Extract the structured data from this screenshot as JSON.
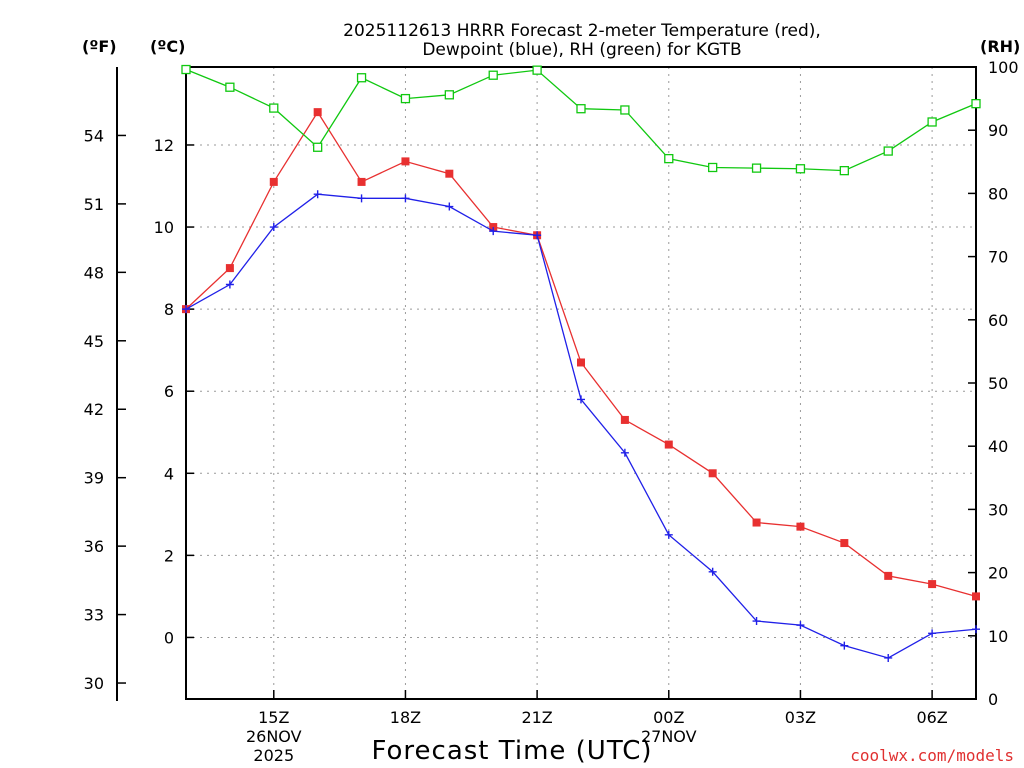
{
  "chart_data": {
    "type": "line",
    "title_line1": "2025112613 HRRR Forecast 2-meter Temperature (red),",
    "title_line2": "Dewpoint (blue), RH (green) for KGTB",
    "xlabel": "Forecast Time (UTC)",
    "credit": "coolwx.com/models",
    "units": {
      "fahrenheit": "(ºF)",
      "celsius": "(ºC)",
      "rh": "(RH)"
    },
    "x_ticks": [
      {
        "hour": 15,
        "label": "15Z",
        "sub1": "26NOV",
        "sub2": "2025"
      },
      {
        "hour": 18,
        "label": "18Z",
        "sub1": "",
        "sub2": ""
      },
      {
        "hour": 21,
        "label": "21Z",
        "sub1": "",
        "sub2": ""
      },
      {
        "hour": 24,
        "label": "00Z",
        "sub1": "27NOV",
        "sub2": ""
      },
      {
        "hour": 27,
        "label": "03Z",
        "sub1": "",
        "sub2": ""
      },
      {
        "hour": 30,
        "label": "06Z",
        "sub1": "",
        "sub2": ""
      }
    ],
    "x_range": [
      13,
      31
    ],
    "x_hours": [
      13,
      14,
      15,
      16,
      17,
      18,
      19,
      20,
      21,
      22,
      23,
      24,
      25,
      26,
      27,
      28,
      29,
      30,
      31
    ],
    "celsius_axis": {
      "range": [
        -1.5,
        13.9
      ],
      "ticks": [
        0,
        2,
        4,
        6,
        8,
        10,
        12
      ]
    },
    "fahrenheit_axis": {
      "range": [
        29.3,
        57.0
      ],
      "ticks": [
        30,
        33,
        36,
        39,
        42,
        45,
        48,
        51,
        54
      ]
    },
    "rh_axis": {
      "range": [
        0,
        100
      ],
      "ticks": [
        0,
        10,
        20,
        30,
        40,
        50,
        60,
        70,
        80,
        90,
        100
      ]
    },
    "series": [
      {
        "name": "Temperature",
        "axis": "celsius",
        "color": "#e83030",
        "marker": "filled-square",
        "values": [
          8.0,
          9.0,
          11.1,
          12.8,
          11.1,
          11.6,
          11.3,
          10.0,
          9.8,
          6.7,
          5.3,
          4.7,
          4.0,
          2.8,
          2.7,
          2.3,
          1.5,
          1.3,
          1.0
        ]
      },
      {
        "name": "Dewpoint",
        "axis": "celsius",
        "color": "#2020e8",
        "marker": "plus",
        "values": [
          8.0,
          8.6,
          10.0,
          10.8,
          10.7,
          10.7,
          10.5,
          9.9,
          9.8,
          5.8,
          4.5,
          2.5,
          1.6,
          0.4,
          0.3,
          -0.2,
          -0.5,
          0.1,
          0.2
        ]
      },
      {
        "name": "RH",
        "axis": "rh",
        "color": "#10c810",
        "marker": "open-square",
        "values": [
          99.6,
          96.8,
          93.5,
          87.3,
          98.3,
          95.0,
          95.6,
          98.7,
          99.5,
          93.4,
          93.2,
          85.5,
          84.1,
          84.0,
          83.9,
          83.6,
          86.7,
          91.3,
          94.2
        ]
      }
    ]
  }
}
